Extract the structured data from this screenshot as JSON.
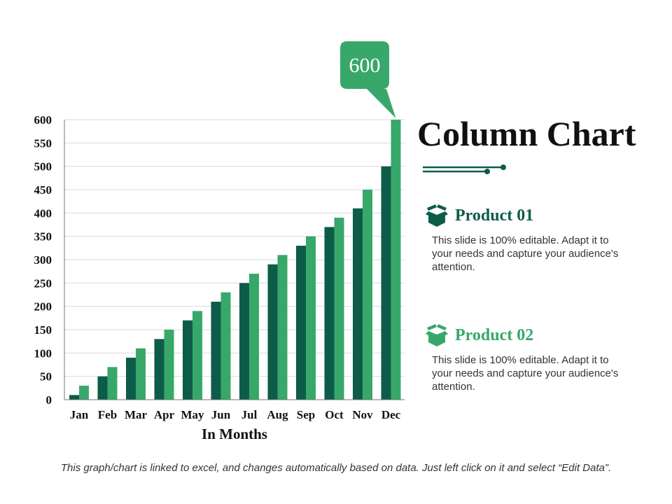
{
  "chart_data": {
    "type": "bar",
    "categories": [
      "Jan",
      "Feb",
      "Mar",
      "Apr",
      "May",
      "Jun",
      "Jul",
      "Aug",
      "Sep",
      "Oct",
      "Nov",
      "Dec"
    ],
    "series": [
      {
        "name": "Product 01",
        "color": "#0d5c4a",
        "values": [
          10,
          50,
          90,
          130,
          170,
          210,
          250,
          290,
          330,
          370,
          410,
          500
        ]
      },
      {
        "name": "Product 02",
        "color": "#38a86a",
        "values": [
          30,
          70,
          110,
          150,
          190,
          230,
          270,
          310,
          350,
          390,
          450,
          600
        ]
      }
    ],
    "yticks": [
      0,
      50,
      100,
      150,
      200,
      250,
      300,
      350,
      400,
      450,
      500,
      550,
      600
    ],
    "ylim": [
      0,
      600
    ],
    "xlabel": "In Months",
    "ylabel": "",
    "grid": true,
    "callout": {
      "label": "600",
      "category": "Dec",
      "series": "Product 02",
      "color": "#38a86a"
    }
  },
  "title": "Column Chart",
  "products": [
    {
      "name": "Product 01",
      "icon": "box-icon",
      "color": "#0d5c4a",
      "description": "This slide is 100% editable. Adapt it to your needs and capture your audience's attention."
    },
    {
      "name": "Product 02",
      "icon": "box-icon",
      "color": "#38a86a",
      "description": "This slide is 100% editable. Adapt it to your needs and capture your audience's attention."
    }
  ],
  "footer": "This graph/chart is linked to excel, and changes automatically based on data. Just left click on it and select “Edit Data”."
}
